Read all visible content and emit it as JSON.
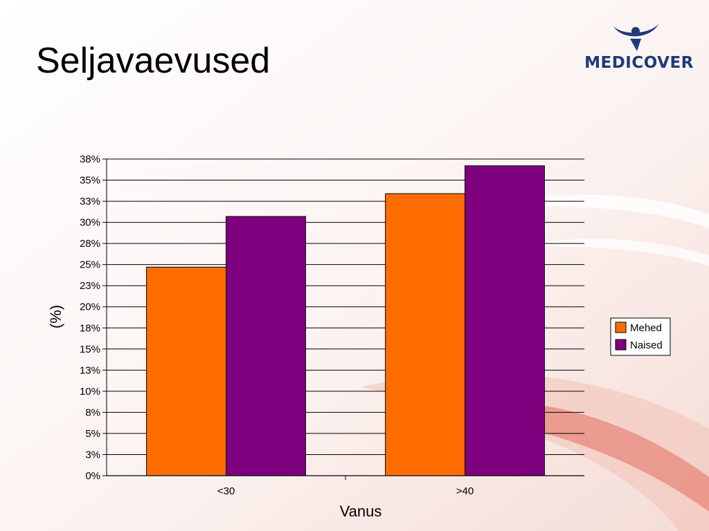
{
  "slide": {
    "title": "Seljavaevused",
    "logo_text": "MEDICOVER"
  },
  "colors": {
    "series_1": "#FF6D00",
    "series_2": "#7E007E",
    "accent_swoosh": "#e05a4a",
    "logo_blue": "#1f3a7a"
  },
  "chart_data": {
    "type": "bar",
    "categories": [
      "<30",
      ">40"
    ],
    "series": [
      {
        "name": "Mehed",
        "values": [
          24.7,
          33.4
        ]
      },
      {
        "name": "Naised",
        "values": [
          30.7,
          36.7
        ]
      }
    ],
    "title": "",
    "xlabel": "Vanus",
    "ylabel": "(%)",
    "ylim": [
      0,
      37.5
    ],
    "yticks": [
      "0%",
      "3%",
      "5%",
      "8%",
      "10%",
      "13%",
      "15%",
      "18%",
      "20%",
      "23%",
      "25%",
      "28%",
      "30%",
      "33%",
      "35%",
      "38%"
    ],
    "grid": true,
    "legend_position": "right"
  }
}
